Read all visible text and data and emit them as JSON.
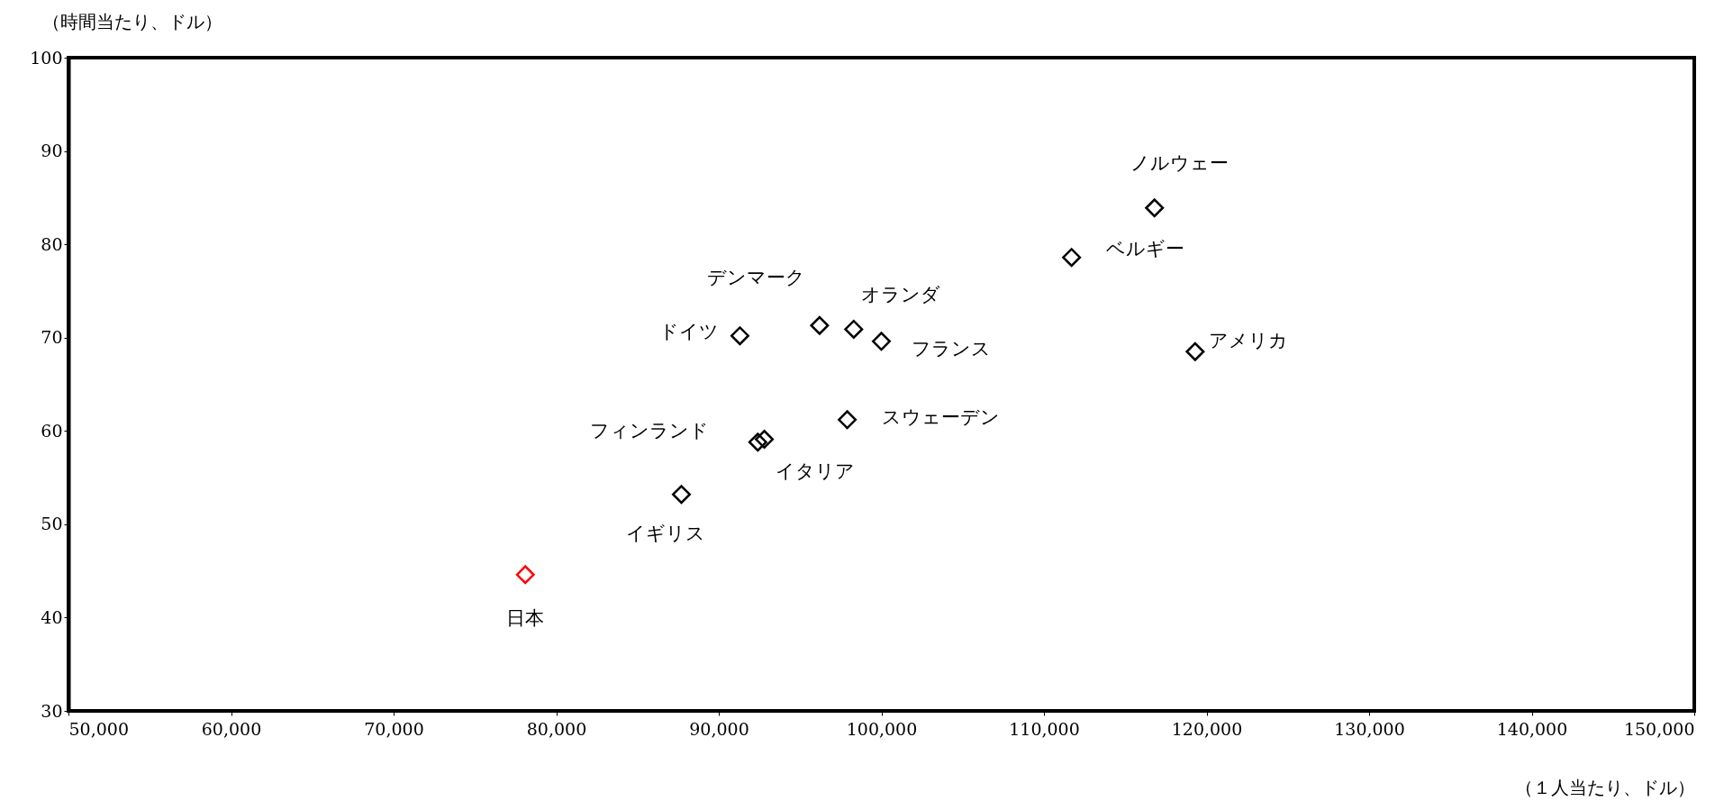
{
  "chart_data": {
    "type": "scatter",
    "xlabel": "（１人当たり、ドル）",
    "ylabel": "（時間当たり、ドル）",
    "xlim": [
      50000,
      150000
    ],
    "ylim": [
      30,
      100
    ],
    "xticks": [
      {
        "value": 50000,
        "label": "50,000"
      },
      {
        "value": 60000,
        "label": "60,000"
      },
      {
        "value": 70000,
        "label": "70,000"
      },
      {
        "value": 80000,
        "label": "80,000"
      },
      {
        "value": 90000,
        "label": "90,000"
      },
      {
        "value": 100000,
        "label": "100,000"
      },
      {
        "value": 110000,
        "label": "110,000"
      },
      {
        "value": 120000,
        "label": "120,000"
      },
      {
        "value": 130000,
        "label": "130,000"
      },
      {
        "value": 140000,
        "label": "140,000"
      },
      {
        "value": 150000,
        "label": "150,000"
      }
    ],
    "yticks": [
      30,
      40,
      50,
      60,
      70,
      80,
      90,
      100
    ],
    "marker": "diamond",
    "x": [
      78100,
      87700,
      92400,
      92800,
      91300,
      96200,
      98300,
      100000,
      97900,
      111700,
      116800,
      119300
    ],
    "values": [
      44.6,
      53.2,
      58.8,
      59.1,
      70.2,
      71.3,
      70.9,
      69.6,
      61.2,
      78.6,
      83.9,
      68.5
    ],
    "colors": [
      "#ff0000",
      "#000000",
      "#000000",
      "#000000",
      "#000000",
      "#000000",
      "#000000",
      "#000000",
      "#000000",
      "#000000",
      "#000000",
      "#000000"
    ],
    "annotations": [
      {
        "text": "日本",
        "x": 78100,
        "y": 44.6
      },
      {
        "text": "イギリス",
        "x": 87700,
        "y": 53.2
      },
      {
        "text": "フィンランド",
        "x": 92400,
        "y": 58.8
      },
      {
        "text": "イタリア",
        "x": 92800,
        "y": 59.1
      },
      {
        "text": "ドイツ",
        "x": 91300,
        "y": 70.2
      },
      {
        "text": "デンマーク",
        "x": 96200,
        "y": 71.3
      },
      {
        "text": "オランダ",
        "x": 98300,
        "y": 70.9
      },
      {
        "text": "フランス",
        "x": 100000,
        "y": 69.6
      },
      {
        "text": "スウェーデン",
        "x": 97900,
        "y": 61.2
      },
      {
        "text": "ベルギー",
        "x": 111700,
        "y": 78.6
      },
      {
        "text": "ノルウェー",
        "x": 116800,
        "y": 83.9
      },
      {
        "text": "アメリカ",
        "x": 119300,
        "y": 68.5
      }
    ]
  }
}
